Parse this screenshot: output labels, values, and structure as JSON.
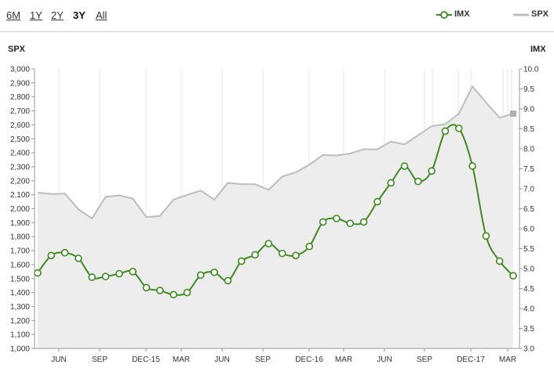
{
  "range_buttons": {
    "six_month": "6M",
    "one_year": "1Y",
    "two_year": "2Y",
    "three_year": "3Y",
    "all": "All"
  },
  "legend": {
    "imx": "IMX",
    "spx": "SPX"
  },
  "axis_titles": {
    "left": "SPX",
    "right": "IMX"
  },
  "colors": {
    "imx_line": "#3d8a1f",
    "spx_line": "#bdbdbd",
    "spx_fill": "#ededed",
    "grid": "#e6e6e6"
  },
  "chart_data": {
    "type": "line",
    "x_tick_labels": [
      "JUN",
      "SEP",
      "DEC-15",
      "MAR",
      "JUN",
      "SEP",
      "DEC-16",
      "MAR",
      "JUN",
      "SEP",
      "DEC-17",
      "MAR"
    ],
    "left_axis": {
      "label": "SPX",
      "ylim": [
        1000,
        3000
      ],
      "ticks": [
        "1,000",
        "1,100",
        "1,200",
        "1,300",
        "1,400",
        "1,500",
        "1,600",
        "1,700",
        "1,800",
        "1,900",
        "2,000",
        "2,100",
        "2,200",
        "2,300",
        "2,400",
        "2,500",
        "2,600",
        "2,700",
        "2,800",
        "2,900",
        "3,000"
      ]
    },
    "right_axis": {
      "label": "IMX",
      "ylim": [
        3.0,
        10.0
      ],
      "ticks": [
        "3.0",
        "3.5",
        "4.0",
        "4.5",
        "5.0",
        "5.5",
        "6.0",
        "6.5",
        "7.0",
        "7.5",
        "8.0",
        "8.5",
        "9.0",
        "9.5",
        "10.0"
      ]
    },
    "series": [
      {
        "name": "SPX",
        "axis": "left",
        "style": "area",
        "values": [
          2115,
          2105,
          2108,
          1995,
          1930,
          2085,
          2095,
          2072,
          1940,
          1948,
          2065,
          2098,
          2130,
          2065,
          2185,
          2175,
          2175,
          2135,
          2230,
          2260,
          2315,
          2385,
          2380,
          2395,
          2425,
          2425,
          2480,
          2460,
          2525,
          2590,
          2605,
          2680,
          2875,
          2760,
          2650,
          2680
        ]
      },
      {
        "name": "IMX",
        "axis": "left",
        "style": "line-markers",
        "values": [
          1540,
          1665,
          1685,
          1645,
          1510,
          1515,
          1535,
          1550,
          1435,
          1415,
          1385,
          1400,
          1525,
          1545,
          1485,
          1625,
          1670,
          1750,
          1680,
          1665,
          1730,
          1905,
          1930,
          1895,
          1905,
          2050,
          2185,
          2305,
          2195,
          2270,
          2555,
          2575,
          2305,
          1805,
          1625,
          1520
        ]
      }
    ],
    "grid": true
  }
}
